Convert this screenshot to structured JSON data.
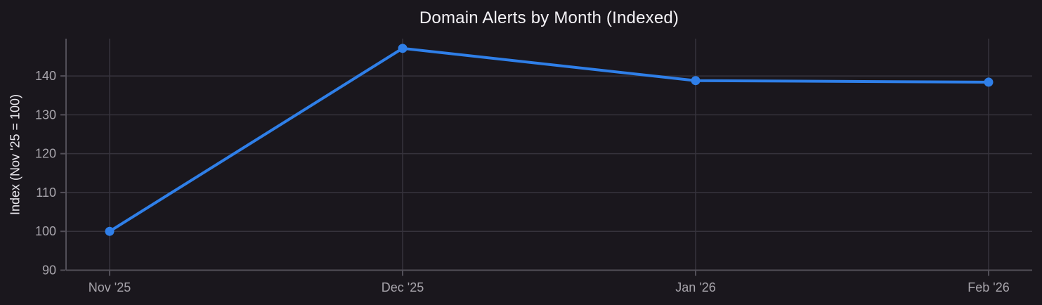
{
  "figure": {
    "title": "Domain Alerts by Month (Indexed)",
    "y_axis_title": "Index (Nov '25 = 100)"
  },
  "chart_data": {
    "type": "line",
    "title": "Domain Alerts by Month (Indexed)",
    "categories": [
      "Nov '25",
      "Dec '25",
      "Jan '26",
      "Feb '26"
    ],
    "values": [
      100,
      147.1,
      138.8,
      138.4
    ],
    "xlabel": "",
    "ylabel": "Index (Nov '25 = 100)",
    "yticks": [
      90,
      100,
      110,
      120,
      130,
      140
    ],
    "ylim": [
      90,
      149.6
    ],
    "grid": true,
    "legend": "none"
  },
  "theme": {
    "background": "#1a171d",
    "line_color": "#2f7fe8",
    "marker_color": "#2f7fe8",
    "grid_color": "#36333c",
    "axis_color": "#524f58",
    "tick_label_color": "#a7a4ab",
    "axis_title_color": "#eae8ee",
    "title_color": "#f4f2f6"
  }
}
